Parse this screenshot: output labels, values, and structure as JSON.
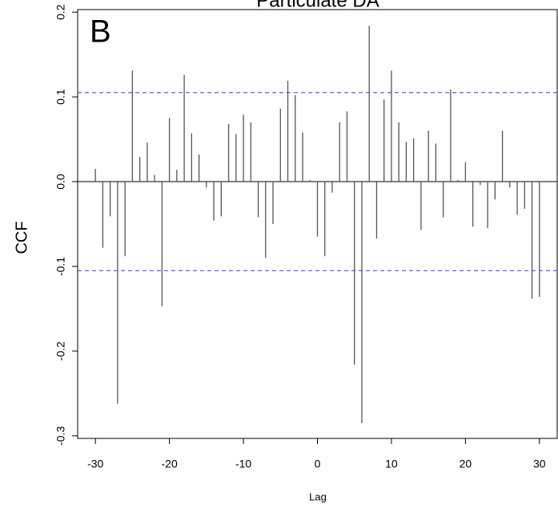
{
  "chart_data": {
    "type": "ccf",
    "title": "Particulate DA",
    "panel_label": "B",
    "x_label": "Lag",
    "y_label": "CCF",
    "x": [
      -30,
      -29,
      -28,
      -27,
      -26,
      -25,
      -24,
      -23,
      -22,
      -21,
      -20,
      -19,
      -18,
      -17,
      -16,
      -15,
      -14,
      -13,
      -12,
      -11,
      -10,
      -9,
      -8,
      -7,
      -6,
      -5,
      -4,
      -3,
      -2,
      -1,
      0,
      1,
      2,
      3,
      4,
      5,
      6,
      7,
      8,
      9,
      10,
      11,
      12,
      13,
      14,
      15,
      16,
      17,
      18,
      19,
      20,
      21,
      22,
      23,
      24,
      25,
      26,
      27,
      28,
      29,
      30
    ],
    "values": [
      0.015,
      -0.078,
      -0.041,
      -0.262,
      -0.088,
      0.131,
      0.029,
      0.046,
      0.008,
      -0.147,
      0.075,
      0.014,
      0.126,
      0.057,
      0.032,
      -0.007,
      -0.046,
      -0.041,
      0.068,
      0.056,
      0.079,
      0.07,
      -0.042,
      -0.09,
      -0.05,
      0.086,
      0.119,
      0.102,
      0.058,
      0.002,
      -0.065,
      -0.088,
      -0.013,
      0.07,
      0.083,
      -0.216,
      -0.285,
      0.184,
      -0.067,
      0.097,
      0.131,
      0.07,
      0.047,
      0.051,
      -0.057,
      0.06,
      0.045,
      -0.042,
      0.109,
      0.002,
      0.023,
      -0.053,
      -0.004,
      -0.055,
      -0.021,
      0.06,
      -0.007,
      -0.039,
      -0.032,
      -0.138,
      -0.136
    ],
    "color": "#555555",
    "conf_limits": [
      -0.105,
      0.105
    ],
    "conf_color": "#3333ff",
    "xlim": [
      -32.4,
      32.4
    ],
    "ylim": [
      -0.303,
      0.203
    ],
    "xticks": [
      -30,
      -20,
      -10,
      0,
      10,
      20,
      30
    ],
    "yticks": [
      -0.3,
      -0.2,
      -0.1,
      {
        "value": 0,
        "label": "0.0"
      },
      0.1,
      0.2
    ]
  }
}
